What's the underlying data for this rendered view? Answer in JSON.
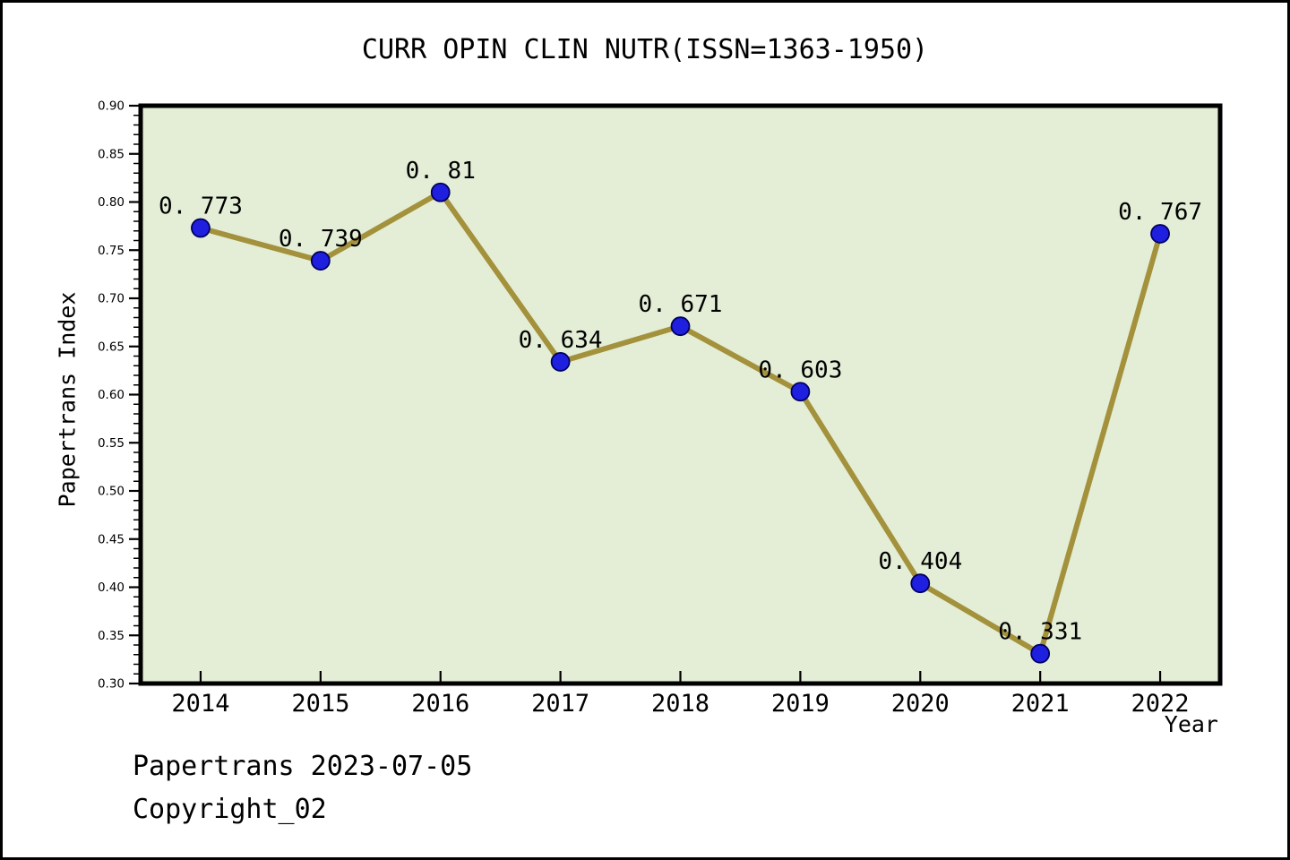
{
  "page": {
    "background": "#ffffff",
    "border_color": "#000000"
  },
  "header": {
    "title": "CURR OPIN CLIN NUTR(ISSN=1363-1950)"
  },
  "footer": {
    "source_line": "Papertrans 2023-07-05",
    "copyright_line": "Copyright_02"
  },
  "chart_data": {
    "type": "line",
    "title": "CURR OPIN CLIN NUTR(ISSN=1363-1950)",
    "xlabel": "Year",
    "ylabel": "Papertrans Index",
    "categories": [
      2014,
      2015,
      2016,
      2017,
      2018,
      2019,
      2020,
      2021,
      2022
    ],
    "values": [
      0.773,
      0.739,
      0.81,
      0.634,
      0.671,
      0.603,
      0.404,
      0.331,
      0.767
    ],
    "point_labels": [
      "0. 773",
      "0. 739",
      "0. 81",
      "0. 634",
      "0. 671",
      "0. 603",
      "0. 404",
      "0. 331",
      "0. 767"
    ],
    "x_tick_labels": [
      "2014",
      "2015",
      "2016",
      "2017",
      "2018",
      "2019",
      "2020",
      "2021",
      "2022"
    ],
    "y_tick_labels": [
      "0.30",
      "0.35",
      "0.40",
      "0.45",
      "0.50",
      "0.55",
      "0.60",
      "0.65",
      "0.70",
      "0.75",
      "0.80",
      "0.85",
      "0.90"
    ],
    "xlim": [
      2013.5,
      2022.5
    ],
    "ylim": [
      0.3,
      0.9
    ],
    "y_major_tick_step": 0.05,
    "y_minor_tick_step": 0.01,
    "grid": false,
    "legend_position": "none",
    "colors": {
      "plot_background": "#e4eed6",
      "line": "#a3913c",
      "marker_fill": "#1f1fe0",
      "marker_edge": "#000060",
      "axis": "#000000",
      "text": "#000000"
    }
  }
}
